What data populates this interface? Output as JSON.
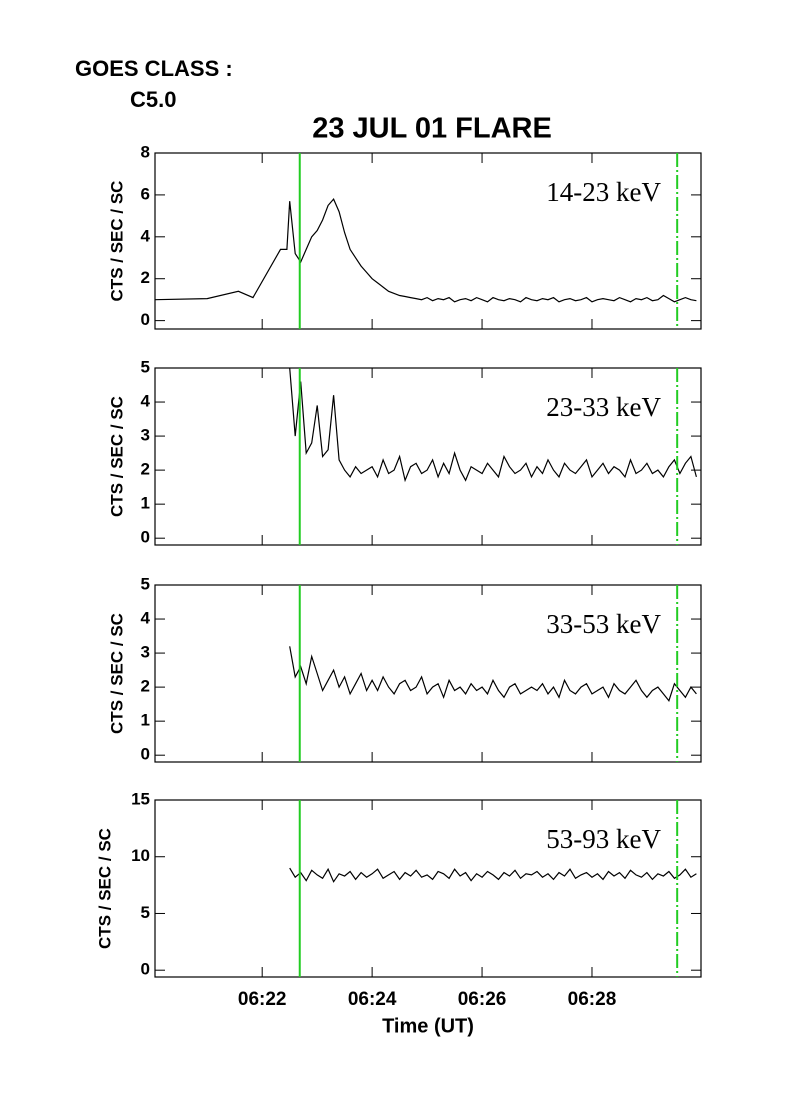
{
  "header": {
    "goes_label": "GOES CLASS :",
    "goes_class": "C5.0"
  },
  "chart_data": [
    {
      "type": "line",
      "title": "23 JUL 01 FLARE",
      "ylabel": "CTS / SEC / SC",
      "label": "14-23 keV",
      "xlim": [
        "06:20:03",
        "06:29:59"
      ],
      "ylim": [
        -0.4,
        8
      ],
      "yticks": [
        0,
        2,
        4,
        6,
        8
      ],
      "vlines": [
        "06:22:41",
        "06:29:33"
      ],
      "vline_color": "#22cc22",
      "vline_styles": [
        "solid",
        "dashdot"
      ],
      "x": [
        "06:20:03",
        "06:21:00",
        "06:21:34",
        "06:21:50",
        "06:22:20",
        "06:22:27",
        "06:22:30",
        "06:22:36",
        "06:22:42",
        "06:22:48",
        "06:22:54",
        "06:23:00",
        "06:23:06",
        "06:23:12",
        "06:23:18",
        "06:23:24",
        "06:23:30",
        "06:23:36",
        "06:23:42",
        "06:23:48",
        "06:23:54",
        "06:24:00",
        "06:24:06",
        "06:24:12",
        "06:24:18",
        "06:24:24",
        "06:24:30",
        "06:24:36",
        "06:24:42",
        "06:24:48",
        "06:24:54",
        "06:25:00",
        "06:25:06",
        "06:25:12",
        "06:25:18",
        "06:25:24",
        "06:25:30",
        "06:25:36",
        "06:25:42",
        "06:25:48",
        "06:25:54",
        "06:26:00",
        "06:26:06",
        "06:26:12",
        "06:26:18",
        "06:26:24",
        "06:26:30",
        "06:26:36",
        "06:26:42",
        "06:26:48",
        "06:26:54",
        "06:27:00",
        "06:27:06",
        "06:27:12",
        "06:27:18",
        "06:27:24",
        "06:27:30",
        "06:27:36",
        "06:27:42",
        "06:27:48",
        "06:27:54",
        "06:28:00",
        "06:28:06",
        "06:28:12",
        "06:28:18",
        "06:28:24",
        "06:28:30",
        "06:28:36",
        "06:28:42",
        "06:28:48",
        "06:28:54",
        "06:29:00",
        "06:29:06",
        "06:29:12",
        "06:29:18",
        "06:29:24",
        "06:29:30",
        "06:29:36",
        "06:29:42",
        "06:29:48",
        "06:29:54"
      ],
      "series": [
        {
          "color": "#000000",
          "values": [
            1.0,
            1.05,
            1.4,
            1.1,
            3.4,
            3.4,
            5.7,
            3.2,
            2.8,
            3.4,
            4.0,
            4.3,
            4.8,
            5.5,
            5.8,
            5.2,
            4.2,
            3.4,
            3.0,
            2.6,
            2.3,
            2.0,
            1.8,
            1.6,
            1.4,
            1.3,
            1.2,
            1.15,
            1.1,
            1.05,
            1.0,
            1.1,
            0.95,
            1.05,
            1.0,
            1.1,
            0.9,
            1.0,
            1.05,
            0.95,
            1.1,
            1.0,
            0.9,
            1.1,
            1.0,
            0.95,
            1.05,
            1.0,
            0.9,
            1.1,
            1.0,
            0.95,
            1.05,
            1.0,
            1.1,
            0.9,
            1.0,
            1.05,
            0.95,
            1.0,
            1.1,
            0.9,
            1.0,
            1.05,
            1.0,
            0.95,
            1.1,
            1.0,
            0.9,
            1.05,
            1.0,
            1.1,
            0.95,
            1.0,
            1.2,
            1.05,
            0.9,
            1.0,
            1.1,
            1.0,
            0.95
          ]
        }
      ]
    },
    {
      "type": "line",
      "ylabel": "CTS / SEC / SC",
      "label": "23-33 keV",
      "xlim": [
        "06:20:03",
        "06:29:59"
      ],
      "ylim": [
        -0.2,
        5
      ],
      "yticks": [
        0,
        1,
        2,
        3,
        4,
        5
      ],
      "vlines": [
        "06:22:41",
        "06:29:33"
      ],
      "vline_color": "#22cc22",
      "vline_styles": [
        "solid",
        "dashdot"
      ],
      "x": [
        "06:22:30",
        "06:22:36",
        "06:22:42",
        "06:22:48",
        "06:22:54",
        "06:23:00",
        "06:23:06",
        "06:23:12",
        "06:23:18",
        "06:23:24",
        "06:23:30",
        "06:23:36",
        "06:23:42",
        "06:23:48",
        "06:23:54",
        "06:24:00",
        "06:24:06",
        "06:24:12",
        "06:24:18",
        "06:24:24",
        "06:24:30",
        "06:24:36",
        "06:24:42",
        "06:24:48",
        "06:24:54",
        "06:25:00",
        "06:25:06",
        "06:25:12",
        "06:25:18",
        "06:25:24",
        "06:25:30",
        "06:25:36",
        "06:25:42",
        "06:25:48",
        "06:25:54",
        "06:26:00",
        "06:26:06",
        "06:26:12",
        "06:26:18",
        "06:26:24",
        "06:26:30",
        "06:26:36",
        "06:26:42",
        "06:26:48",
        "06:26:54",
        "06:27:00",
        "06:27:06",
        "06:27:12",
        "06:27:18",
        "06:27:24",
        "06:27:30",
        "06:27:36",
        "06:27:42",
        "06:27:48",
        "06:27:54",
        "06:28:00",
        "06:28:06",
        "06:28:12",
        "06:28:18",
        "06:28:24",
        "06:28:30",
        "06:28:36",
        "06:28:42",
        "06:28:48",
        "06:28:54",
        "06:29:00",
        "06:29:06",
        "06:29:12",
        "06:29:18",
        "06:29:24",
        "06:29:30",
        "06:29:36",
        "06:29:42",
        "06:29:48",
        "06:29:54"
      ],
      "series": [
        {
          "color": "#000000",
          "values": [
            5.0,
            3.0,
            4.6,
            2.5,
            2.8,
            3.9,
            2.4,
            2.6,
            4.2,
            2.3,
            2.0,
            1.8,
            2.1,
            1.9,
            2.0,
            2.1,
            1.8,
            2.3,
            1.9,
            2.0,
            2.4,
            1.7,
            2.1,
            2.2,
            1.9,
            2.0,
            2.3,
            1.8,
            2.2,
            1.9,
            2.5,
            2.0,
            1.7,
            2.1,
            2.0,
            1.9,
            2.2,
            2.0,
            1.8,
            2.4,
            2.1,
            1.9,
            2.0,
            2.2,
            1.8,
            2.1,
            1.9,
            2.3,
            2.0,
            1.8,
            2.2,
            2.0,
            1.9,
            2.1,
            2.3,
            1.8,
            2.0,
            2.2,
            1.9,
            2.1,
            2.0,
            1.8,
            2.3,
            1.9,
            2.0,
            2.2,
            1.9,
            2.0,
            1.8,
            2.1,
            2.3,
            1.9,
            2.2,
            2.4,
            1.8
          ]
        }
      ]
    },
    {
      "type": "line",
      "ylabel": "CTS / SEC / SC",
      "label": "33-53 keV",
      "xlim": [
        "06:20:03",
        "06:29:59"
      ],
      "ylim": [
        -0.2,
        5
      ],
      "yticks": [
        0,
        1,
        2,
        3,
        4,
        5
      ],
      "vlines": [
        "06:22:41",
        "06:29:33"
      ],
      "vline_color": "#22cc22",
      "vline_styles": [
        "solid",
        "dashdot"
      ],
      "x": [
        "06:22:30",
        "06:22:36",
        "06:22:42",
        "06:22:48",
        "06:22:54",
        "06:23:00",
        "06:23:06",
        "06:23:12",
        "06:23:18",
        "06:23:24",
        "06:23:30",
        "06:23:36",
        "06:23:42",
        "06:23:48",
        "06:23:54",
        "06:24:00",
        "06:24:06",
        "06:24:12",
        "06:24:18",
        "06:24:24",
        "06:24:30",
        "06:24:36",
        "06:24:42",
        "06:24:48",
        "06:24:54",
        "06:25:00",
        "06:25:06",
        "06:25:12",
        "06:25:18",
        "06:25:24",
        "06:25:30",
        "06:25:36",
        "06:25:42",
        "06:25:48",
        "06:25:54",
        "06:26:00",
        "06:26:06",
        "06:26:12",
        "06:26:18",
        "06:26:24",
        "06:26:30",
        "06:26:36",
        "06:26:42",
        "06:26:48",
        "06:26:54",
        "06:27:00",
        "06:27:06",
        "06:27:12",
        "06:27:18",
        "06:27:24",
        "06:27:30",
        "06:27:36",
        "06:27:42",
        "06:27:48",
        "06:27:54",
        "06:28:00",
        "06:28:06",
        "06:28:12",
        "06:28:18",
        "06:28:24",
        "06:28:30",
        "06:28:36",
        "06:28:42",
        "06:28:48",
        "06:28:54",
        "06:29:00",
        "06:29:06",
        "06:29:12",
        "06:29:18",
        "06:29:24",
        "06:29:30",
        "06:29:36",
        "06:29:42",
        "06:29:48",
        "06:29:54"
      ],
      "series": [
        {
          "color": "#000000",
          "values": [
            3.2,
            2.3,
            2.6,
            2.1,
            2.9,
            2.4,
            1.9,
            2.2,
            2.5,
            2.0,
            2.3,
            1.8,
            2.1,
            2.4,
            1.9,
            2.2,
            1.9,
            2.3,
            2.0,
            1.8,
            2.1,
            2.2,
            1.9,
            2.0,
            2.3,
            1.8,
            2.0,
            2.1,
            1.7,
            2.2,
            1.9,
            2.0,
            1.8,
            2.1,
            1.9,
            2.0,
            1.8,
            2.2,
            1.9,
            1.7,
            2.0,
            2.1,
            1.8,
            1.9,
            2.0,
            1.9,
            2.1,
            1.8,
            2.0,
            1.7,
            2.2,
            1.9,
            1.8,
            2.0,
            2.1,
            1.8,
            1.9,
            2.0,
            1.7,
            2.1,
            1.9,
            1.8,
            2.0,
            2.2,
            1.9,
            1.7,
            1.9,
            2.0,
            1.8,
            1.6,
            2.1,
            1.9,
            1.7,
            2.0,
            1.8
          ]
        }
      ]
    },
    {
      "type": "line",
      "ylabel": "CTS / SEC / SC",
      "label": "53-93 keV",
      "xlabel": "Time (UT)",
      "xlim": [
        "06:20:03",
        "06:29:59"
      ],
      "ylim": [
        -0.6,
        15
      ],
      "yticks": [
        0,
        5,
        10,
        15
      ],
      "xticks": [
        "06:22",
        "06:24",
        "06:26",
        "06:28"
      ],
      "vlines": [
        "06:22:41",
        "06:29:33"
      ],
      "vline_color": "#22cc22",
      "vline_styles": [
        "solid",
        "dashdot"
      ],
      "x": [
        "06:22:30",
        "06:22:36",
        "06:22:42",
        "06:22:48",
        "06:22:54",
        "06:23:00",
        "06:23:06",
        "06:23:12",
        "06:23:18",
        "06:23:24",
        "06:23:30",
        "06:23:36",
        "06:23:42",
        "06:23:48",
        "06:23:54",
        "06:24:00",
        "06:24:06",
        "06:24:12",
        "06:24:18",
        "06:24:24",
        "06:24:30",
        "06:24:36",
        "06:24:42",
        "06:24:48",
        "06:24:54",
        "06:25:00",
        "06:25:06",
        "06:25:12",
        "06:25:18",
        "06:25:24",
        "06:25:30",
        "06:25:36",
        "06:25:42",
        "06:25:48",
        "06:25:54",
        "06:26:00",
        "06:26:06",
        "06:26:12",
        "06:26:18",
        "06:26:24",
        "06:26:30",
        "06:26:36",
        "06:26:42",
        "06:26:48",
        "06:26:54",
        "06:27:00",
        "06:27:06",
        "06:27:12",
        "06:27:18",
        "06:27:24",
        "06:27:30",
        "06:27:36",
        "06:27:42",
        "06:27:48",
        "06:27:54",
        "06:28:00",
        "06:28:06",
        "06:28:12",
        "06:28:18",
        "06:28:24",
        "06:28:30",
        "06:28:36",
        "06:28:42",
        "06:28:48",
        "06:28:54",
        "06:29:00",
        "06:29:06",
        "06:29:12",
        "06:29:18",
        "06:29:24",
        "06:29:30",
        "06:29:36",
        "06:29:42",
        "06:29:48",
        "06:29:54"
      ],
      "series": [
        {
          "color": "#000000",
          "values": [
            9.0,
            8.2,
            8.6,
            7.9,
            8.8,
            8.4,
            8.1,
            8.9,
            7.8,
            8.5,
            8.3,
            8.7,
            8.0,
            8.6,
            8.2,
            8.5,
            8.9,
            8.1,
            8.4,
            8.7,
            8.0,
            8.6,
            8.3,
            8.8,
            8.2,
            8.4,
            8.0,
            8.7,
            8.5,
            8.1,
            8.9,
            8.3,
            8.6,
            7.9,
            8.5,
            8.2,
            8.7,
            8.4,
            8.0,
            8.6,
            8.3,
            8.8,
            8.1,
            8.5,
            8.4,
            8.7,
            8.2,
            8.5,
            8.0,
            8.6,
            8.3,
            8.9,
            8.1,
            8.4,
            8.6,
            8.2,
            8.5,
            8.0,
            8.7,
            8.3,
            8.6,
            8.1,
            8.8,
            8.4,
            8.2,
            8.6,
            8.0,
            8.5,
            8.3,
            8.7,
            8.1,
            8.4,
            8.9,
            8.2,
            8.5
          ]
        }
      ]
    }
  ]
}
